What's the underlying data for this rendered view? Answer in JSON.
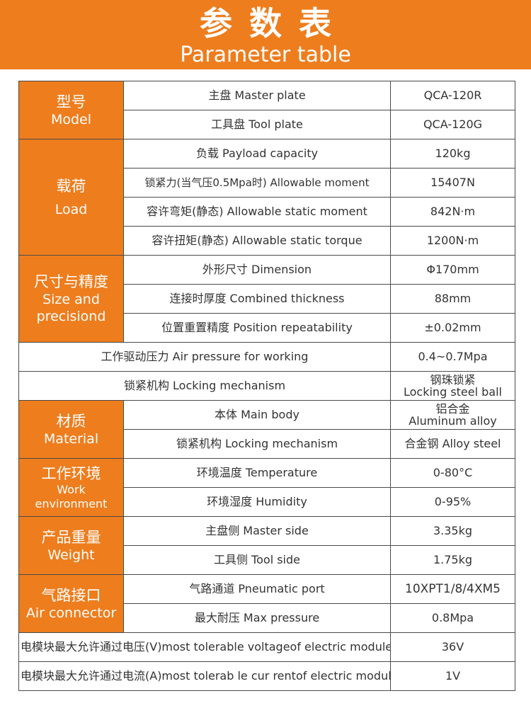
{
  "header": {
    "title_cn": "参数表",
    "title_en": "Parameter table"
  },
  "colors": {
    "accent": "#ee7d1d",
    "border": "#4a4a4a",
    "text": "#333333"
  },
  "categories": {
    "model": {
      "cn": "型号",
      "en": "Model"
    },
    "load": {
      "cn": "载荷",
      "en": "Load"
    },
    "size": {
      "cn": "尺寸与精度",
      "en_1": "Size and",
      "en_2": "precisiond"
    },
    "material": {
      "cn": "材质",
      "en": "Material"
    },
    "environment": {
      "cn": "工作环境",
      "en": "Work environment"
    },
    "weight": {
      "cn": "产品重量",
      "en": "Weight"
    },
    "air": {
      "cn": "气路接口",
      "en": "Air connector"
    }
  },
  "rows": [
    {
      "label": "主盘 Master plate",
      "value": "QCA-120R"
    },
    {
      "label": "工具盘 Tool plate",
      "value": "QCA-120G"
    },
    {
      "label": "负载 Payload capacity",
      "value": "120kg"
    },
    {
      "label": "锁紧力(当气压0.5Mpa时) Allowable moment",
      "value": "15407N"
    },
    {
      "label": "容许弯矩(静态) Allowable static moment",
      "value": "842N·m"
    },
    {
      "label": "容许扭矩(静态) Allowable static torque",
      "value": "1200N·m"
    },
    {
      "label": "外形尺寸 Dimension",
      "value": "Φ170mm"
    },
    {
      "label": "连接时厚度 Combined thickness",
      "value": "88mm"
    },
    {
      "label": "位置重置精度 Position repeatability",
      "value": "±0.02mm"
    },
    {
      "label": "工作驱动压力 Air pressure for working",
      "value": "0.4~0.7Mpa"
    },
    {
      "label": "锁紧机构 Locking mechanism",
      "value_1": "钢珠锁紧",
      "value_2": "Locking steel ball"
    },
    {
      "label": "本体 Main body",
      "value_1": "铝合金",
      "value_2": "Aluminum alloy"
    },
    {
      "label": "锁紧机构 Locking mechanism",
      "value": "合金钢 Alloy steel"
    },
    {
      "label": "环境温度 Temperature",
      "value": "0-80°C"
    },
    {
      "label": "环境湿度 Humidity",
      "value": "0-95%"
    },
    {
      "label": "主盘侧 Master side",
      "value": "3.35kg"
    },
    {
      "label": "工具侧 Tool side",
      "value": "1.75kg"
    },
    {
      "label": "气路通道 Pneumatic port",
      "value": "10XPT1/8/4XM5"
    },
    {
      "label": "最大耐压 Max pressure",
      "value": "0.8Mpa"
    },
    {
      "label": "电模块最大允许通过电压(V)most tolerable voltageof electric module",
      "value": "36V"
    },
    {
      "label": "电模块最大允许通过电流(A)most tolerab le cur rentof electric module",
      "value": "1V"
    }
  ]
}
